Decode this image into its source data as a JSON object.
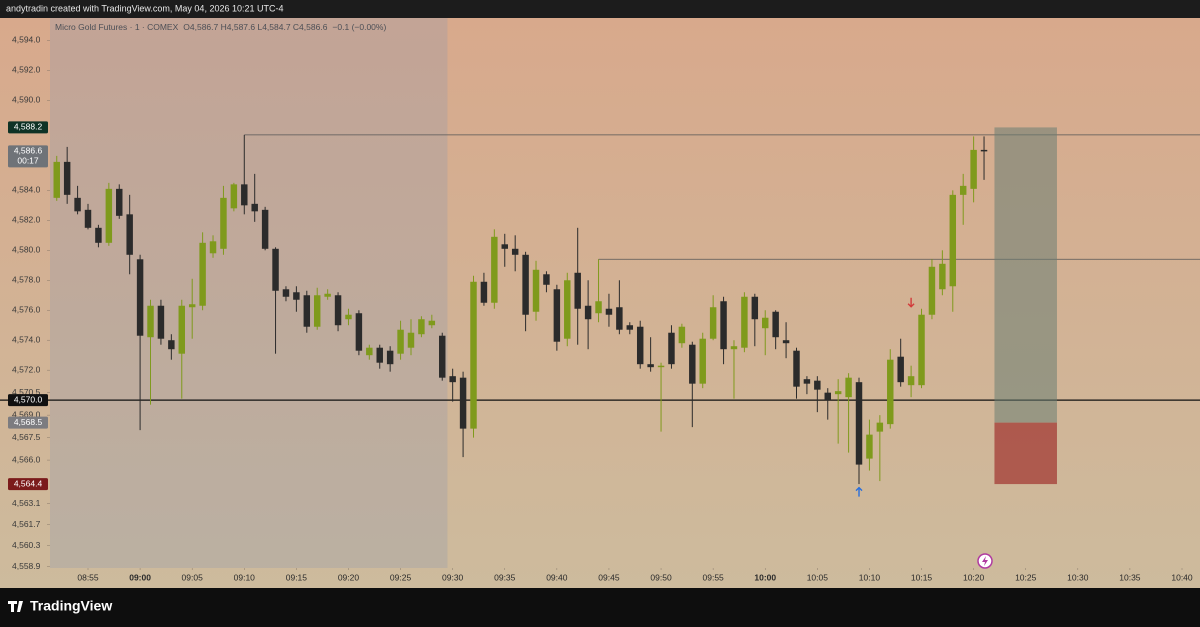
{
  "header": {
    "attribution": "andytradin created with TradingView.com, May 04, 2026 10:21 UTC-4"
  },
  "footer": {
    "brand": "TradingView"
  },
  "chart_data": {
    "type": "candlestick",
    "title": "Micro Gold Futures · 1 · COMEX",
    "ohlc_legend": "O4,586.7 H4,587.6 L4,584.7 C4,586.6",
    "change": "−0.1 (−0.00%)",
    "up_color": "#7f9a1c",
    "down_color": "#2b2b2b",
    "x": [
      "08:52",
      "08:53",
      "08:54",
      "08:55",
      "08:56",
      "08:57",
      "08:58",
      "08:59",
      "09:00",
      "09:01",
      "09:02",
      "09:03",
      "09:04",
      "09:05",
      "09:06",
      "09:07",
      "09:08",
      "09:09",
      "09:10",
      "09:11",
      "09:12",
      "09:13",
      "09:14",
      "09:15",
      "09:16",
      "09:17",
      "09:18",
      "09:19",
      "09:20",
      "09:21",
      "09:22",
      "09:23",
      "09:24",
      "09:25",
      "09:26",
      "09:27",
      "09:28",
      "09:29",
      "09:30",
      "09:31",
      "09:32",
      "09:33",
      "09:34",
      "09:35",
      "09:36",
      "09:37",
      "09:38",
      "09:39",
      "09:40",
      "09:41",
      "09:42",
      "09:43",
      "09:44",
      "09:45",
      "09:46",
      "09:47",
      "09:48",
      "09:49",
      "09:50",
      "09:51",
      "09:52",
      "09:53",
      "09:54",
      "09:55",
      "09:56",
      "09:57",
      "09:58",
      "09:59",
      "10:00",
      "10:01",
      "10:02",
      "10:03",
      "10:04",
      "10:05",
      "10:06",
      "10:07",
      "10:08",
      "10:09",
      "10:10",
      "10:11",
      "10:12",
      "10:13",
      "10:14",
      "10:15",
      "10:16",
      "10:17",
      "10:18",
      "10:19",
      "10:20",
      "10:21"
    ],
    "open": [
      4583.5,
      4585.9,
      4583.5,
      4582.7,
      4581.5,
      4580.5,
      4584.1,
      4582.4,
      4579.4,
      4574.2,
      4576.3,
      4574.0,
      4573.1,
      4576.2,
      4576.3,
      4579.8,
      4580.1,
      4582.8,
      4584.4,
      4583.1,
      4582.7,
      4580.1,
      4577.4,
      4577.2,
      4577.0,
      4574.9,
      4576.9,
      4577.0,
      4575.4,
      4575.8,
      4573.0,
      4573.5,
      4573.3,
      4573.1,
      4573.5,
      4574.4,
      4575.0,
      4574.3,
      4571.6,
      4571.5,
      4568.1,
      4577.9,
      4576.5,
      4580.4,
      4580.1,
      4579.7,
      4575.9,
      4578.4,
      4577.4,
      4574.1,
      4578.5,
      4576.3,
      4575.8,
      4576.1,
      4576.2,
      4575.0,
      4574.9,
      4572.4,
      4572.2,
      4574.5,
      4573.8,
      4573.7,
      4571.1,
      4574.1,
      4576.6,
      4573.4,
      4573.5,
      4576.9,
      4574.8,
      4575.9,
      4574.0,
      4573.3,
      4571.4,
      4571.3,
      4570.5,
      4570.4,
      4570.2,
      4571.2,
      4566.1,
      4567.9,
      4568.4,
      4572.9,
      4571.0,
      4571.0,
      4575.7,
      4577.4,
      4577.6,
      4583.7,
      4584.1,
      4586.7
    ],
    "high": [
      4586.3,
      4586.9,
      4584.3,
      4583.1,
      4581.7,
      4584.5,
      4584.4,
      4583.7,
      4579.7,
      4576.7,
      4576.7,
      4574.4,
      4576.7,
      4578.1,
      4581.2,
      4581.0,
      4584.3,
      4584.5,
      4587.7,
      4585.1,
      4582.9,
      4580.2,
      4577.6,
      4577.6,
      4577.3,
      4577.5,
      4577.4,
      4577.2,
      4576.1,
      4576.0,
      4573.7,
      4573.7,
      4573.6,
      4575.3,
      4575.4,
      4575.6,
      4575.7,
      4574.5,
      4572.1,
      4571.9,
      4578.3,
      4578.5,
      4581.4,
      4581.1,
      4581.0,
      4579.9,
      4579.3,
      4578.6,
      4577.7,
      4578.5,
      4581.5,
      4578.0,
      4579.4,
      4577.1,
      4578.0,
      4575.2,
      4575.3,
      4574.2,
      4572.5,
      4575.0,
      4575.1,
      4573.9,
      4574.5,
      4577.0,
      4576.9,
      4574.0,
      4577.2,
      4577.1,
      4576.0,
      4576.0,
      4575.2,
      4573.5,
      4571.6,
      4571.6,
      4570.8,
      4571.4,
      4571.8,
      4571.5,
      4568.7,
      4569.0,
      4573.4,
      4574.1,
      4572.3,
      4576.1,
      4579.4,
      4580.0,
      4584.0,
      4585.1,
      4587.6,
      4587.6
    ],
    "low": [
      4583.3,
      4583.1,
      4582.4,
      4581.4,
      4580.2,
      4580.3,
      4582.1,
      4578.4,
      4568.0,
      4569.7,
      4573.7,
      4572.7,
      4570.1,
      4574.1,
      4576.0,
      4579.5,
      4579.7,
      4582.6,
      4582.4,
      4581.9,
      4580.0,
      4573.1,
      4576.6,
      4575.9,
      4574.5,
      4574.7,
      4576.7,
      4574.6,
      4575.0,
      4573.0,
      4572.7,
      4572.1,
      4571.9,
      4572.7,
      4573.0,
      4574.2,
      4574.8,
      4571.3,
      4569.9,
      4566.2,
      4567.5,
      4576.3,
      4576.1,
      4578.9,
      4578.6,
      4574.6,
      4575.3,
      4577.2,
      4573.3,
      4573.6,
      4573.7,
      4573.4,
      4575.2,
      4574.9,
      4574.4,
      4574.4,
      4572.1,
      4571.9,
      4567.9,
      4572.1,
      4573.5,
      4568.2,
      4570.8,
      4574.0,
      4572.4,
      4570.1,
      4573.2,
      4573.6,
      4573.0,
      4573.4,
      4572.8,
      4570.1,
      4570.4,
      4569.2,
      4568.7,
      4567.1,
      4566.5,
      4564.4,
      4565.3,
      4564.6,
      4568.1,
      4570.9,
      4570.2,
      4570.8,
      4575.4,
      4577.0,
      4575.9,
      4581.7,
      4583.2,
      4584.7
    ],
    "close": [
      4585.9,
      4583.7,
      4582.6,
      4581.5,
      4580.5,
      4584.1,
      4582.3,
      4579.7,
      4574.3,
      4576.3,
      4574.1,
      4573.4,
      4576.3,
      4576.4,
      4580.5,
      4580.6,
      4583.5,
      4584.4,
      4583.0,
      4582.6,
      4580.1,
      4577.3,
      4576.9,
      4576.7,
      4574.9,
      4577.0,
      4577.1,
      4575.0,
      4575.7,
      4573.3,
      4573.5,
      4572.5,
      4572.4,
      4574.7,
      4574.5,
      4575.4,
      4575.3,
      4571.5,
      4571.2,
      4568.1,
      4577.9,
      4576.5,
      4580.9,
      4580.1,
      4579.7,
      4575.7,
      4578.7,
      4577.7,
      4573.9,
      4578.0,
      4576.1,
      4575.4,
      4576.6,
      4575.7,
      4574.7,
      4574.7,
      4572.4,
      4572.2,
      4572.3,
      4572.4,
      4574.9,
      4571.1,
      4574.1,
      4576.2,
      4573.4,
      4573.6,
      4576.9,
      4575.4,
      4575.5,
      4574.2,
      4573.8,
      4570.9,
      4571.1,
      4570.7,
      4570.0,
      4570.6,
      4571.5,
      4565.7,
      4567.7,
      4568.5,
      4572.7,
      4571.2,
      4571.6,
      4575.7,
      4578.9,
      4579.1,
      4583.7,
      4584.3,
      4586.7,
      4586.6
    ],
    "ylim": [
      4558.8,
      4594.7
    ],
    "yticks": [
      {
        "value": 4594.0,
        "label": "4,594.0"
      },
      {
        "value": 4592.0,
        "label": "4,592.0"
      },
      {
        "value": 4590.0,
        "label": "4,590.0"
      },
      {
        "value": 4584.0,
        "label": "4,584.0"
      },
      {
        "value": 4582.0,
        "label": "4,582.0"
      },
      {
        "value": 4580.0,
        "label": "4,580.0"
      },
      {
        "value": 4578.0,
        "label": "4,578.0"
      },
      {
        "value": 4576.0,
        "label": "4,576.0"
      },
      {
        "value": 4574.0,
        "label": "4,574.0"
      },
      {
        "value": 4572.0,
        "label": "4,572.0"
      },
      {
        "value": 4570.5,
        "label": "4,570.5"
      },
      {
        "value": 4569.0,
        "label": "4,569.0"
      },
      {
        "value": 4567.5,
        "label": "4,567.5"
      },
      {
        "value": 4566.0,
        "label": "4,566.0"
      },
      {
        "value": 4563.1,
        "label": "4,563.1"
      },
      {
        "value": 4561.7,
        "label": "4,561.7"
      },
      {
        "value": 4560.3,
        "label": "4,560.3"
      },
      {
        "value": 4558.9,
        "label": "4,558.9"
      }
    ],
    "xticks": [
      "08:55",
      "09:00",
      "09:05",
      "09:10",
      "09:15",
      "09:20",
      "09:25",
      "09:30",
      "09:35",
      "09:40",
      "09:45",
      "09:50",
      "09:55",
      "10:00",
      "10:05",
      "10:10",
      "10:15",
      "10:20",
      "10:25",
      "10:30",
      "10:35",
      "10:40"
    ],
    "session_start": "09:30",
    "price_labels": [
      {
        "value": 4588.2,
        "label": "4,588.2",
        "color": "#0f3326"
      },
      {
        "value": 4586.6,
        "label": "4,586.6",
        "countdown": "00:17",
        "color": "#6f7378"
      },
      {
        "value": 4570.0,
        "label": "4,570.0",
        "color": "#111111"
      },
      {
        "value": 4568.5,
        "label": "4,568.5",
        "color": "#7c7c80"
      },
      {
        "value": 4564.4,
        "label": "4,564.4",
        "color": "#7b1b1b"
      }
    ],
    "levels": [
      {
        "from": "09:10",
        "value": 4587.7
      },
      {
        "from": "09:44",
        "value": 4579.4
      }
    ],
    "hline": 4570.0,
    "position": {
      "from": "10:22",
      "to": "10:28",
      "target": 4588.2,
      "entry": 4568.5,
      "stop": 4564.4
    },
    "markers": [
      {
        "time": "10:14",
        "value": 4576.5,
        "dir": "down",
        "color": "#d23b3b"
      },
      {
        "time": "10:09",
        "value": 4563.9,
        "dir": "up",
        "color": "#2a6fdb"
      }
    ]
  }
}
